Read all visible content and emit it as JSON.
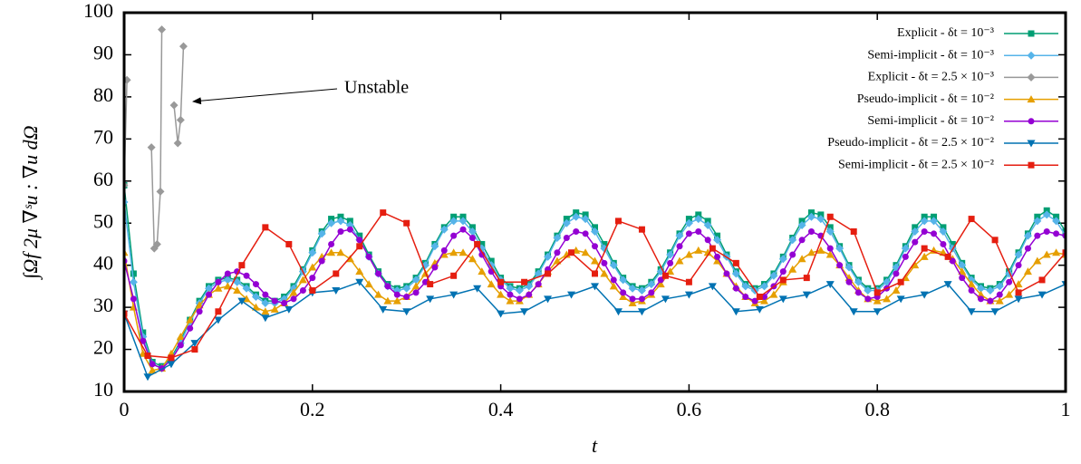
{
  "chart_data": {
    "type": "line",
    "xlabel": "t",
    "ylabel": "∫Ωf 2μ ∇ˢu : ∇u dΩ",
    "annotation": "Unstable",
    "xlim": [
      0,
      1
    ],
    "ylim": [
      10,
      100
    ],
    "xticks": [
      0,
      0.2,
      0.4,
      0.6,
      0.8,
      1
    ],
    "yticks": [
      10,
      20,
      30,
      40,
      50,
      60,
      70,
      80,
      90,
      100
    ],
    "legend": "upper right",
    "series": [
      {
        "name": "Explicit - δt = 10⁻³",
        "color": "#009e73",
        "marker": "square",
        "x": [
          0,
          0.01,
          0.02,
          0.03,
          0.04,
          0.05,
          0.06,
          0.07,
          0.08,
          0.09,
          0.1,
          0.11,
          0.12,
          0.13,
          0.14,
          0.15,
          0.16,
          0.17,
          0.18,
          0.19,
          0.2,
          0.21,
          0.22,
          0.23,
          0.24,
          0.25,
          0.26,
          0.27,
          0.28,
          0.29,
          0.3,
          0.31,
          0.32,
          0.33,
          0.34,
          0.35,
          0.36,
          0.37,
          0.38,
          0.39,
          0.4,
          0.41,
          0.42,
          0.43,
          0.44,
          0.45,
          0.46,
          0.47,
          0.48,
          0.49,
          0.5,
          0.51,
          0.52,
          0.53,
          0.54,
          0.55,
          0.56,
          0.57,
          0.58,
          0.59,
          0.6,
          0.61,
          0.62,
          0.63,
          0.64,
          0.65,
          0.66,
          0.67,
          0.68,
          0.69,
          0.7,
          0.71,
          0.72,
          0.73,
          0.74,
          0.75,
          0.76,
          0.77,
          0.78,
          0.79,
          0.8,
          0.81,
          0.82,
          0.83,
          0.84,
          0.85,
          0.86,
          0.87,
          0.88,
          0.89,
          0.9,
          0.91,
          0.92,
          0.93,
          0.94,
          0.95,
          0.96,
          0.97,
          0.98,
          0.99,
          1
        ],
        "values": [
          59,
          38,
          24,
          17,
          16,
          18,
          22,
          27,
          31.5,
          35,
          36.5,
          37,
          36.5,
          35,
          33,
          31.5,
          31.5,
          32.5,
          35,
          39,
          43.5,
          48,
          51,
          51.5,
          50.5,
          47,
          42.5,
          38.5,
          35.5,
          34.5,
          35,
          37,
          40.5,
          45,
          49,
          51.5,
          51.5,
          49,
          45,
          41,
          37,
          35,
          34.5,
          35.5,
          38.5,
          42.5,
          47,
          51,
          52.5,
          52,
          49,
          45,
          40.5,
          37,
          35,
          34.5,
          36,
          39,
          43,
          47.5,
          51,
          52,
          50.5,
          47,
          42.5,
          38.5,
          35.5,
          34.5,
          35.5,
          38,
          42,
          46.5,
          50.5,
          52.5,
          52,
          49,
          44.5,
          40,
          36.5,
          34.5,
          34.5,
          36.5,
          40,
          44.5,
          49,
          51.5,
          51.5,
          49,
          45,
          40.5,
          37,
          35,
          34.5,
          35.5,
          38.5,
          43,
          47.5,
          51.5,
          53,
          51.5,
          48
        ]
      },
      {
        "name": "Semi-implicit - δt = 10⁻³",
        "color": "#56b4e9",
        "marker": "diamond",
        "x": [
          0,
          0.01,
          0.02,
          0.03,
          0.04,
          0.05,
          0.06,
          0.07,
          0.08,
          0.09,
          0.1,
          0.11,
          0.12,
          0.13,
          0.14,
          0.15,
          0.16,
          0.17,
          0.18,
          0.19,
          0.2,
          0.21,
          0.22,
          0.23,
          0.24,
          0.25,
          0.26,
          0.27,
          0.28,
          0.29,
          0.3,
          0.31,
          0.32,
          0.33,
          0.34,
          0.35,
          0.36,
          0.37,
          0.38,
          0.39,
          0.4,
          0.41,
          0.42,
          0.43,
          0.44,
          0.45,
          0.46,
          0.47,
          0.48,
          0.49,
          0.5,
          0.51,
          0.52,
          0.53,
          0.54,
          0.55,
          0.56,
          0.57,
          0.58,
          0.59,
          0.6,
          0.61,
          0.62,
          0.63,
          0.64,
          0.65,
          0.66,
          0.67,
          0.68,
          0.69,
          0.7,
          0.71,
          0.72,
          0.73,
          0.74,
          0.75,
          0.76,
          0.77,
          0.78,
          0.79,
          0.8,
          0.81,
          0.82,
          0.83,
          0.84,
          0.85,
          0.86,
          0.87,
          0.88,
          0.89,
          0.9,
          0.91,
          0.92,
          0.93,
          0.94,
          0.95,
          0.96,
          0.97,
          0.98,
          0.99,
          1
        ],
        "values": [
          55,
          36,
          23,
          16.5,
          15.5,
          17.5,
          21.5,
          26.5,
          31,
          34.5,
          36,
          36.5,
          36,
          34.5,
          32.5,
          31,
          31,
          32,
          34.5,
          38.5,
          43,
          47.5,
          50,
          50.5,
          49.5,
          46,
          42,
          38,
          35,
          34,
          34.5,
          36.5,
          40,
          44.5,
          48.5,
          50.5,
          50.5,
          48,
          44,
          40,
          36.5,
          34.5,
          34,
          35,
          38,
          42,
          46.5,
          50,
          51.5,
          51,
          48,
          44,
          40,
          36.5,
          34.5,
          34,
          35.5,
          38.5,
          42.5,
          47,
          50,
          51,
          49.5,
          46,
          42,
          38,
          35,
          34,
          35,
          37.5,
          41.5,
          46,
          49.5,
          51.5,
          51,
          48,
          44,
          39.5,
          36,
          34,
          34,
          36,
          39.5,
          44,
          48,
          50.5,
          50.5,
          48,
          44,
          40,
          36.5,
          34.5,
          34,
          35,
          38,
          42.5,
          47,
          50.5,
          52,
          50.5,
          47
        ]
      },
      {
        "name": "Explicit - δt = 2.5 × 10⁻³",
        "color": "#999999",
        "marker": "diamond",
        "x": [
          0,
          0.003,
          0.005,
          0.029,
          0.032,
          0.035,
          0.0385,
          0.04,
          0.045,
          0.053,
          0.057,
          0.06,
          0.063
        ],
        "values": [
          59,
          84,
          null,
          68,
          44,
          45,
          57.5,
          96,
          null,
          78,
          69,
          74.5,
          92
        ]
      },
      {
        "name": "Pseudo-implicit - δt = 10⁻²",
        "color": "#e69f00",
        "marker": "triangle",
        "x": [
          0,
          0.01,
          0.02,
          0.03,
          0.04,
          0.05,
          0.06,
          0.07,
          0.08,
          0.09,
          0.1,
          0.11,
          0.12,
          0.13,
          0.14,
          0.15,
          0.16,
          0.17,
          0.18,
          0.19,
          0.2,
          0.21,
          0.22,
          0.23,
          0.24,
          0.25,
          0.26,
          0.27,
          0.28,
          0.29,
          0.3,
          0.31,
          0.32,
          0.33,
          0.34,
          0.35,
          0.36,
          0.37,
          0.38,
          0.39,
          0.4,
          0.41,
          0.42,
          0.43,
          0.44,
          0.45,
          0.46,
          0.47,
          0.48,
          0.49,
          0.5,
          0.51,
          0.52,
          0.53,
          0.54,
          0.55,
          0.56,
          0.57,
          0.58,
          0.59,
          0.6,
          0.61,
          0.62,
          0.63,
          0.64,
          0.65,
          0.66,
          0.67,
          0.68,
          0.69,
          0.7,
          0.71,
          0.72,
          0.73,
          0.74,
          0.75,
          0.76,
          0.77,
          0.78,
          0.79,
          0.8,
          0.81,
          0.82,
          0.83,
          0.84,
          0.85,
          0.86,
          0.87,
          0.88,
          0.89,
          0.9,
          0.91,
          0.92,
          0.93,
          0.94,
          0.95,
          0.96,
          0.97,
          0.98,
          0.99,
          1
        ],
        "values": [
          43,
          30,
          19,
          15,
          15.5,
          19,
          23,
          27,
          30.5,
          33,
          34.5,
          35,
          34,
          32,
          30,
          29,
          29.5,
          31,
          33.5,
          36.5,
          39.5,
          42,
          43,
          43,
          41.5,
          38.5,
          35.5,
          33,
          31.5,
          31.5,
          32.5,
          35,
          38,
          40.5,
          42.5,
          43,
          43,
          41.5,
          38.5,
          35.5,
          33,
          31.5,
          31.5,
          33,
          35.5,
          38.5,
          41,
          42.5,
          43.5,
          43,
          41,
          38,
          35,
          32.5,
          31,
          31.5,
          33,
          35.5,
          38.5,
          41,
          42.5,
          43.5,
          43,
          41,
          38,
          35,
          32.5,
          31,
          31.5,
          33,
          36,
          39,
          41.5,
          43,
          43.5,
          42.5,
          40,
          37,
          34,
          32,
          31.5,
          32,
          34,
          37,
          40,
          42,
          43.5,
          43,
          41.5,
          38.5,
          35.5,
          33,
          31.5,
          31.5,
          33,
          35.5,
          38.5,
          41,
          42.5,
          43,
          42.5
        ]
      },
      {
        "name": "Semi-implicit - δt = 10⁻²",
        "color": "#9400d3",
        "marker": "circle",
        "x": [
          0,
          0.01,
          0.02,
          0.03,
          0.04,
          0.05,
          0.06,
          0.07,
          0.08,
          0.09,
          0.1,
          0.11,
          0.12,
          0.13,
          0.14,
          0.15,
          0.16,
          0.17,
          0.18,
          0.19,
          0.2,
          0.21,
          0.22,
          0.23,
          0.24,
          0.25,
          0.26,
          0.27,
          0.28,
          0.29,
          0.3,
          0.31,
          0.32,
          0.33,
          0.34,
          0.35,
          0.36,
          0.37,
          0.38,
          0.39,
          0.4,
          0.41,
          0.42,
          0.43,
          0.44,
          0.45,
          0.46,
          0.47,
          0.48,
          0.49,
          0.5,
          0.51,
          0.52,
          0.53,
          0.54,
          0.55,
          0.56,
          0.57,
          0.58,
          0.59,
          0.6,
          0.61,
          0.62,
          0.63,
          0.64,
          0.65,
          0.66,
          0.67,
          0.68,
          0.69,
          0.7,
          0.71,
          0.72,
          0.73,
          0.74,
          0.75,
          0.76,
          0.77,
          0.78,
          0.79,
          0.8,
          0.81,
          0.82,
          0.83,
          0.84,
          0.85,
          0.86,
          0.87,
          0.88,
          0.89,
          0.9,
          0.91,
          0.92,
          0.93,
          0.94,
          0.95,
          0.96,
          0.97,
          0.98,
          0.99,
          1
        ],
        "values": [
          41,
          32,
          22,
          16.5,
          15.5,
          17.5,
          21,
          25,
          29,
          33,
          36,
          38,
          38.5,
          37.5,
          35.5,
          33,
          31.5,
          31,
          32,
          34,
          37,
          41,
          45,
          48,
          48.5,
          46,
          42,
          38,
          35,
          33,
          32.5,
          33.5,
          36,
          39.5,
          43.5,
          47,
          48.5,
          46.5,
          42.5,
          38.5,
          35,
          33,
          32,
          33,
          35.5,
          39,
          43,
          46.5,
          48,
          47.5,
          44.5,
          40.5,
          36.5,
          33.5,
          32,
          32,
          33.5,
          36.5,
          40.5,
          44.5,
          47.5,
          48,
          46,
          42,
          38,
          34.5,
          32.5,
          31.5,
          32.5,
          35,
          38.5,
          42.5,
          46,
          48,
          47,
          44,
          40,
          36,
          33.5,
          32,
          32.5,
          34.5,
          38,
          42,
          45.5,
          48,
          47.5,
          45,
          41,
          37,
          34,
          32,
          31.5,
          33,
          36,
          40,
          44,
          47,
          48,
          47.5,
          47
        ]
      },
      {
        "name": "Pseudo-implicit - δt = 2.5 × 10⁻²",
        "color": "#0072b2",
        "marker": "triangle-down",
        "x": [
          0,
          0.025,
          0.05,
          0.075,
          0.1,
          0.125,
          0.15,
          0.175,
          0.2,
          0.225,
          0.25,
          0.275,
          0.3,
          0.325,
          0.35,
          0.375,
          0.4,
          0.425,
          0.45,
          0.475,
          0.5,
          0.525,
          0.55,
          0.575,
          0.6,
          0.625,
          0.65,
          0.675,
          0.7,
          0.725,
          0.75,
          0.775,
          0.8,
          0.825,
          0.85,
          0.875,
          0.9,
          0.925,
          0.95,
          0.975,
          1
        ],
        "values": [
          28.5,
          13.5,
          16.5,
          21.5,
          27,
          31.5,
          27.5,
          29.5,
          33.5,
          34,
          36,
          29.5,
          29,
          32,
          33,
          34.5,
          28.5,
          29,
          32,
          33,
          35,
          29,
          29,
          32,
          33,
          35,
          29,
          29.5,
          32,
          33,
          35.5,
          29,
          29,
          32,
          33,
          35.5,
          29,
          29,
          32,
          33,
          35.5
        ]
      },
      {
        "name": "Semi-implicit - δt = 2.5 × 10⁻²",
        "color": "#e51e10",
        "marker": "square",
        "x": [
          0,
          0.025,
          0.05,
          0.075,
          0.1,
          0.125,
          0.15,
          0.175,
          0.2,
          0.225,
          0.25,
          0.275,
          0.3,
          0.325,
          0.35,
          0.375,
          0.4,
          0.425,
          0.45,
          0.475,
          0.5,
          0.525,
          0.55,
          0.575,
          0.6,
          0.625,
          0.65,
          0.675,
          0.7,
          0.725,
          0.75,
          0.775,
          0.8,
          0.825,
          0.85,
          0.875,
          0.9,
          0.925,
          0.95,
          0.975,
          1
        ],
        "values": [
          28.5,
          18.5,
          18,
          20,
          29,
          40,
          49,
          45,
          34,
          38,
          44.5,
          52.5,
          50,
          35.5,
          37.5,
          45,
          36,
          36,
          38,
          43,
          38,
          50.5,
          48.5,
          37.5,
          36,
          44,
          40.5,
          32.5,
          36.5,
          37,
          51.5,
          48,
          33.5,
          36,
          44,
          42,
          51,
          46,
          33.5,
          36.5,
          43
        ]
      }
    ]
  }
}
